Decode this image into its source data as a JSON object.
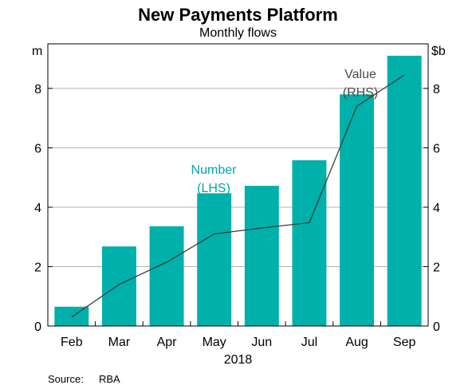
{
  "chart_data": {
    "type": "bar",
    "title": "New Payments Platform",
    "subtitle": "Monthly flows",
    "categories": [
      "Feb",
      "Mar",
      "Apr",
      "May",
      "Jun",
      "Jul",
      "Aug",
      "Sep"
    ],
    "xlabel": "2018",
    "left_axis": {
      "unit": "m",
      "ticks": [
        "0",
        "2",
        "4",
        "6",
        "8"
      ],
      "ylim": [
        0,
        9.5
      ]
    },
    "right_axis": {
      "unit": "$b",
      "ticks": [
        "0",
        "2",
        "4",
        "6",
        "8"
      ],
      "ylim": [
        0,
        9.5
      ]
    },
    "series": [
      {
        "name": "Number",
        "label_lines": [
          "Number",
          "(LHS)"
        ],
        "axis": "left",
        "kind": "bar",
        "color": "#00b0aa",
        "values": [
          0.65,
          2.68,
          3.36,
          4.47,
          4.72,
          5.58,
          7.8,
          9.1
        ]
      },
      {
        "name": "Value",
        "label_lines": [
          "Value",
          "(RHS)"
        ],
        "axis": "right",
        "kind": "line",
        "color": "#3c3c3c",
        "values": [
          0.3,
          1.4,
          2.15,
          3.1,
          3.3,
          3.48,
          7.4,
          8.45
        ]
      }
    ],
    "grid": true
  },
  "source": {
    "label": "Source:",
    "text": "RBA"
  }
}
